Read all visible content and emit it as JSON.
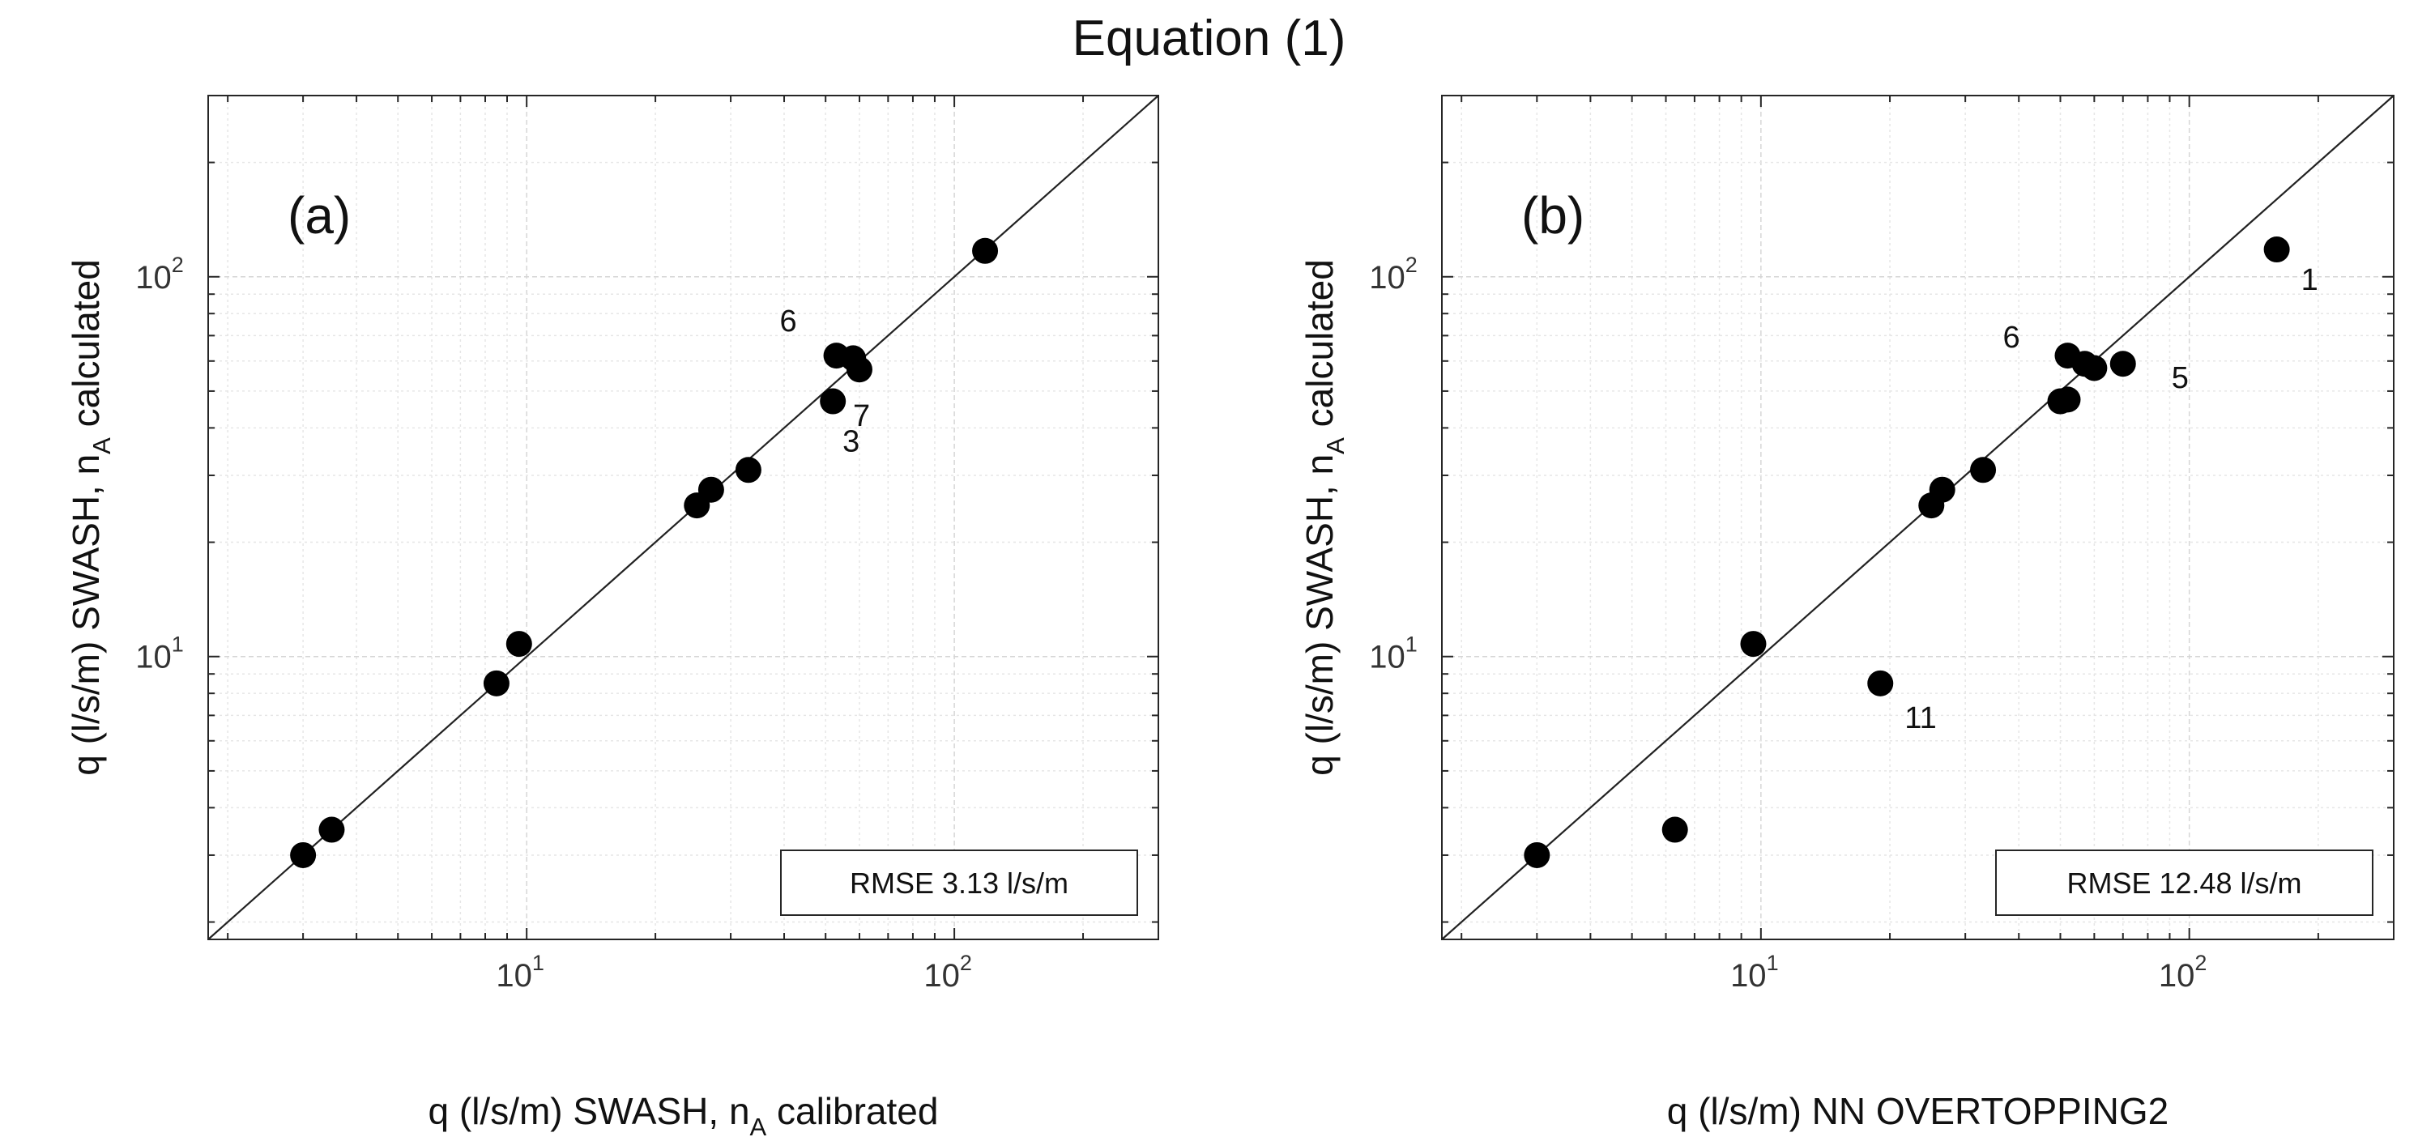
{
  "title": "Equation (1)",
  "chart_data": [
    {
      "type": "scatter",
      "panel_label": "(a)",
      "xlabel": {
        "prefix": "q (l/s/m) SWASH, n",
        "sub": "A",
        "suffix": " calibrated"
      },
      "ylabel": {
        "prefix": "q (l/s/m) SWASH, n",
        "sub": "A",
        "suffix": " calculated"
      },
      "xscale": "log",
      "yscale": "log",
      "xlim": [
        1.8,
        300
      ],
      "ylim": [
        1.8,
        300
      ],
      "ticks": [
        {
          "value": 10,
          "base": "10",
          "exp": "1"
        },
        {
          "value": 100,
          "base": "10",
          "exp": "2"
        }
      ],
      "reference_line": "y = x",
      "annotation": "RMSE 3.13 l/s/m",
      "annotation_position": "bottom-right",
      "grid": true,
      "points": [
        {
          "x": 3.0,
          "y": 3.0,
          "label": ""
        },
        {
          "x": 3.5,
          "y": 3.5,
          "label": ""
        },
        {
          "x": 8.5,
          "y": 8.5,
          "label": ""
        },
        {
          "x": 9.6,
          "y": 10.8,
          "label": ""
        },
        {
          "x": 25,
          "y": 25,
          "label": ""
        },
        {
          "x": 27,
          "y": 27.5,
          "label": ""
        },
        {
          "x": 33,
          "y": 31,
          "label": ""
        },
        {
          "x": 52,
          "y": 47,
          "label": "3"
        },
        {
          "x": 53,
          "y": 62,
          "label": "6"
        },
        {
          "x": 58,
          "y": 61,
          "label": ""
        },
        {
          "x": 60,
          "y": 57,
          "label": "7"
        },
        {
          "x": 118,
          "y": 117,
          "label": ""
        }
      ]
    },
    {
      "type": "scatter",
      "panel_label": "(b)",
      "xlabel": {
        "prefix": "q (l/s/m) NN OVERTOPPING2",
        "sub": "",
        "suffix": ""
      },
      "ylabel": {
        "prefix": "q (l/s/m) SWASH, n",
        "sub": "A",
        "suffix": " calculated"
      },
      "xscale": "log",
      "yscale": "log",
      "xlim": [
        1.8,
        300
      ],
      "ylim": [
        1.8,
        300
      ],
      "ticks": [
        {
          "value": 10,
          "base": "10",
          "exp": "1"
        },
        {
          "value": 100,
          "base": "10",
          "exp": "2"
        }
      ],
      "reference_line": "y = x",
      "annotation": "RMSE 12.48 l/s/m",
      "annotation_position": "bottom-right",
      "grid": true,
      "points": [
        {
          "x": 3.0,
          "y": 3.0,
          "label": ""
        },
        {
          "x": 6.3,
          "y": 3.5,
          "label": ""
        },
        {
          "x": 9.6,
          "y": 10.8,
          "label": ""
        },
        {
          "x": 19,
          "y": 8.5,
          "label": "11"
        },
        {
          "x": 25,
          "y": 25,
          "label": ""
        },
        {
          "x": 26.5,
          "y": 27.5,
          "label": ""
        },
        {
          "x": 33,
          "y": 31,
          "label": ""
        },
        {
          "x": 50,
          "y": 47,
          "label": ""
        },
        {
          "x": 52,
          "y": 47.5,
          "label": ""
        },
        {
          "x": 52,
          "y": 62,
          "label": "6"
        },
        {
          "x": 57,
          "y": 59,
          "label": ""
        },
        {
          "x": 60,
          "y": 57.5,
          "label": ""
        },
        {
          "x": 70,
          "y": 59,
          "label": "5"
        },
        {
          "x": 160,
          "y": 118,
          "label": "1"
        }
      ]
    }
  ]
}
